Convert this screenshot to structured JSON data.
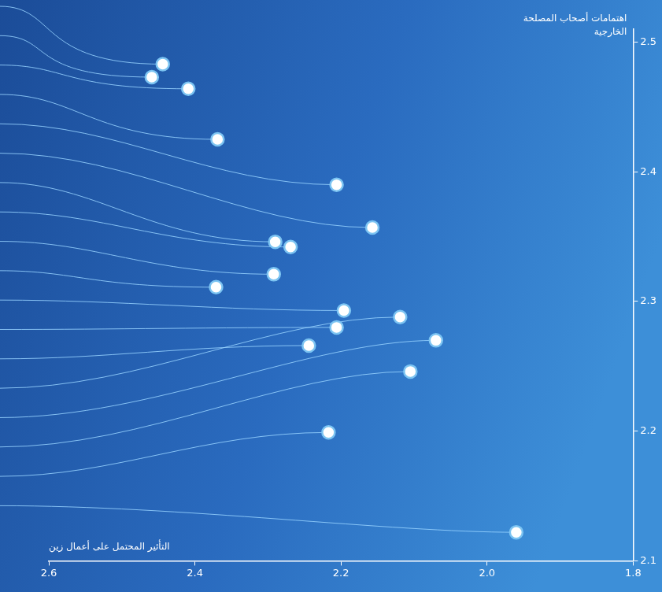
{
  "chart_data": {
    "type": "scatter",
    "x_label": "التأثير المحتمل على أعمال زين",
    "y_label": "اهتمامات أصحاب المصلحة الخارجية",
    "x": [
      2.444,
      2.459,
      2.409,
      2.369,
      2.206,
      2.157,
      2.29,
      2.269,
      2.292,
      2.371,
      2.196,
      2.206,
      2.244,
      2.119,
      2.07,
      2.105,
      2.217,
      1.96
    ],
    "values": [
      2.483,
      2.473,
      2.464,
      2.425,
      2.39,
      2.357,
      2.346,
      2.342,
      2.321,
      2.311,
      2.293,
      2.28,
      2.266,
      2.288,
      2.27,
      2.246,
      2.199,
      2.122
    ],
    "color": "#ffffff",
    "marker": "circle",
    "xlim": [
      2.6,
      1.8
    ],
    "xticks": [
      2.6,
      2.4,
      2.2,
      {
        "value": 2.0,
        "label": "2.0"
      },
      1.8
    ],
    "ylim": [
      2.1,
      2.51
    ],
    "yticks": [
      2.1,
      2.2,
      2.3,
      2.4,
      2.5
    ],
    "grid": false
  }
}
